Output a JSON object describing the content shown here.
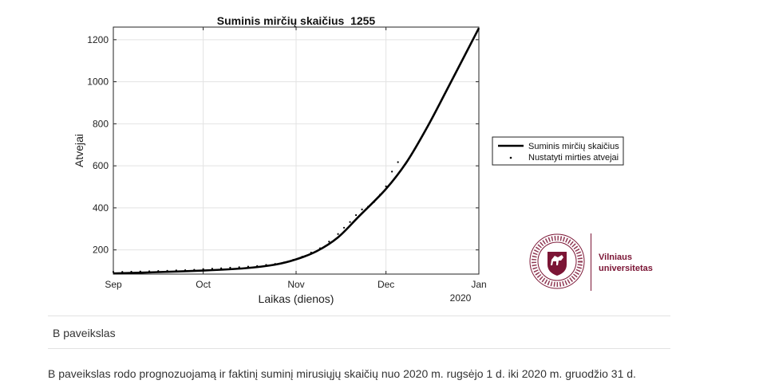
{
  "chart_data": {
    "type": "line",
    "title": "Suminis mirčių skaičius  1255",
    "xlabel": "Laikas (dienos)",
    "ylabel": "Atvejai",
    "x_tick_labels": [
      "Sep",
      "Oct",
      "Nov",
      "Dec",
      "Jan"
    ],
    "x_year_label": "2020",
    "x_range": [
      "2020-09-01",
      "2021-01-01"
    ],
    "y_ticks": [
      200,
      400,
      600,
      800,
      1000,
      1200
    ],
    "ylim": [
      85,
      1260
    ],
    "grid": true,
    "legend_position": "right-outside",
    "series": [
      {
        "name": "Suminis mirčių skaičius",
        "style": "line",
        "color": "#000000",
        "x": [
          "2020-09-01",
          "2020-09-15",
          "2020-10-01",
          "2020-10-15",
          "2020-10-25",
          "2020-11-01",
          "2020-11-08",
          "2020-11-15",
          "2020-11-22",
          "2020-12-01",
          "2020-12-08",
          "2020-12-15",
          "2020-12-22",
          "2021-01-01"
        ],
        "values": [
          88,
          94,
          102,
          113,
          130,
          155,
          195,
          260,
          360,
          490,
          620,
          790,
          980,
          1255
        ]
      },
      {
        "name": "Nustatyti mirties atvejai",
        "style": "dots",
        "color": "#000000",
        "x": [
          "2020-09-01",
          "2020-09-04",
          "2020-09-07",
          "2020-09-10",
          "2020-09-13",
          "2020-09-16",
          "2020-09-19",
          "2020-09-22",
          "2020-09-25",
          "2020-09-28",
          "2020-10-01",
          "2020-10-04",
          "2020-10-07",
          "2020-10-10",
          "2020-10-13",
          "2020-10-16",
          "2020-10-19",
          "2020-10-22",
          "2020-10-25",
          "2020-10-28",
          "2020-10-31",
          "2020-11-03",
          "2020-11-06",
          "2020-11-09",
          "2020-11-12",
          "2020-11-15",
          "2020-11-17",
          "2020-11-19",
          "2020-11-21",
          "2020-11-23",
          "2020-11-25",
          "2020-11-27",
          "2020-11-29",
          "2020-12-01",
          "2020-12-03",
          "2020-12-05"
        ],
        "values": [
          88,
          88,
          89,
          90,
          91,
          92,
          93,
          95,
          96,
          98,
          101,
          103,
          105,
          108,
          110,
          113,
          116,
          121,
          126,
          133,
          145,
          160,
          180,
          200,
          232,
          268,
          298,
          325,
          358,
          385,
          398,
          420,
          455,
          495,
          565,
          610
        ]
      }
    ]
  },
  "legend": {
    "entries": [
      "Suminis mirčių skaičius",
      "Nustatyti mirties atvejai"
    ]
  },
  "logo": {
    "line1": "Vilniaus",
    "line2": "universitetas",
    "seal_text": "UNIVERSITAS VILNENSIS · VILNIAUS UNIVERSITETAS · 1579"
  },
  "caption": {
    "label": "B paveikslas",
    "description": "B paveikslas rodo prognozuojamą ir faktinį suminį mirusiųjų skaičių nuo 2020 m. rugsėjo 1 d. iki 2020 m. gruodžio 31 d."
  }
}
